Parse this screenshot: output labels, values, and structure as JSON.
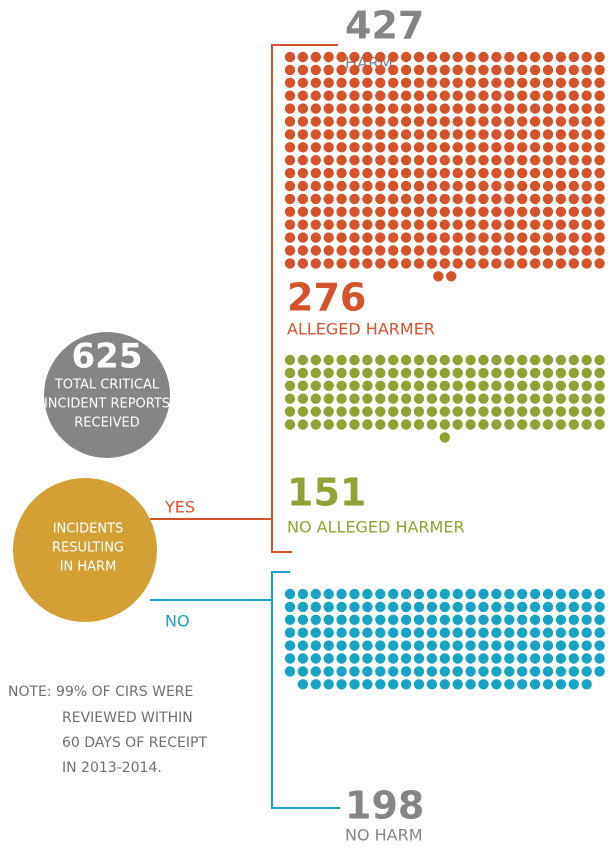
{
  "harm": {
    "count": 427,
    "label": "HARM"
  },
  "alleged_harmer": {
    "count": 276,
    "label": "ALLEGED HARMER"
  },
  "no_alleged_harmer": {
    "count": 151,
    "label": "NO ALLEGED HARMER"
  },
  "no_harm": {
    "count": 198,
    "label": "NO HARM"
  },
  "total": {
    "count": 625,
    "lines": [
      "TOTAL CRITICAL",
      "INCIDENT REPORTS",
      "RECEIVED"
    ]
  },
  "question": {
    "lines": [
      "INCIDENTS",
      "RESULTING",
      "IN HARM"
    ],
    "yes": "YES",
    "no": "NO"
  },
  "note": {
    "lines": [
      "NOTE: 99% OF CIRS WERE",
      "REVIEWED WITHIN",
      "60 DAYS OF RECEIPT",
      "IN 2013-2014."
    ]
  }
}
